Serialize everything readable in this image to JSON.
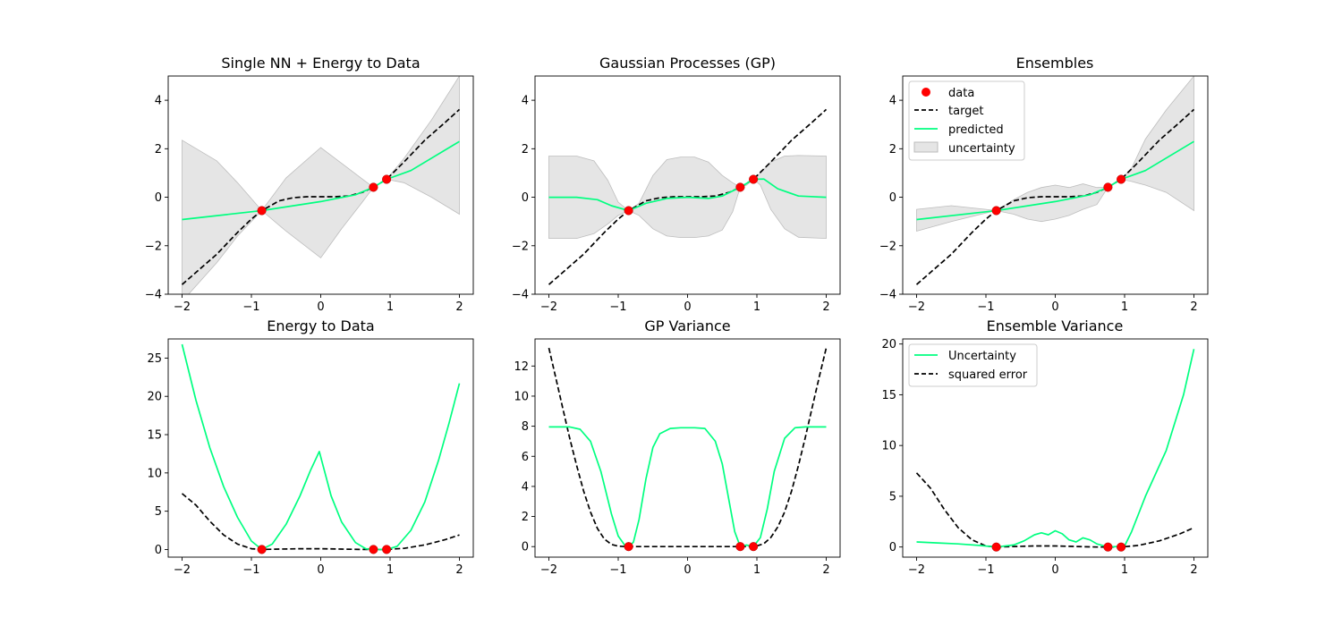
{
  "colors": {
    "data": "#ff0000",
    "target": "#000000",
    "predicted": "#00ff80",
    "band": "#d3d3d3"
  },
  "chart_data": [
    {
      "type": "line",
      "title": "Single NN + Energy to Data",
      "xlim": [
        -2.2,
        2.2
      ],
      "ylim": [
        -4,
        5
      ],
      "xticks": [
        -2,
        -1,
        0,
        1,
        2
      ],
      "yticks": [
        -4,
        -2,
        0,
        2,
        4
      ],
      "data_points": {
        "x": [
          -0.85,
          0.76,
          0.95
        ],
        "y": [
          -0.55,
          0.41,
          0.74
        ]
      },
      "target": {
        "x": [
          -2.0,
          -1.5,
          -1.2,
          -1.0,
          -0.85,
          -0.6,
          -0.4,
          -0.2,
          0.0,
          0.2,
          0.4,
          0.6,
          0.76,
          0.95,
          1.2,
          1.5,
          1.8,
          2.0
        ],
        "y": [
          -3.6,
          -2.35,
          -1.45,
          -0.9,
          -0.55,
          -0.15,
          -0.02,
          0.02,
          0.02,
          0.02,
          0.05,
          0.2,
          0.41,
          0.74,
          1.45,
          2.35,
          3.1,
          3.62
        ]
      },
      "predicted": {
        "x": [
          -2.0,
          -1.0,
          -0.85,
          0.0,
          0.5,
          0.76,
          0.95,
          1.3,
          2.0
        ],
        "y": [
          -0.92,
          -0.6,
          -0.55,
          -0.18,
          0.1,
          0.41,
          0.74,
          1.1,
          2.3
        ]
      },
      "band": {
        "x": [
          -2.0,
          -1.5,
          -1.2,
          -0.85,
          -0.5,
          0.0,
          0.3,
          0.6,
          0.76,
          0.95,
          1.2,
          1.6,
          2.0
        ],
        "lower": [
          -4.3,
          -2.7,
          -1.6,
          -0.55,
          -1.4,
          -2.5,
          -1.3,
          -0.2,
          0.41,
          0.74,
          0.6,
          0.0,
          -0.7
        ],
        "upper": [
          2.35,
          1.5,
          0.6,
          -0.55,
          0.8,
          2.05,
          1.4,
          0.75,
          0.41,
          0.74,
          1.6,
          3.2,
          5.0
        ]
      }
    },
    {
      "type": "line",
      "title": "Gaussian Processes (GP)",
      "xlim": [
        -2.2,
        2.2
      ],
      "ylim": [
        -4,
        5
      ],
      "xticks": [
        -2,
        -1,
        0,
        1,
        2
      ],
      "yticks": [
        -4,
        -2,
        0,
        2,
        4
      ],
      "data_points": {
        "x": [
          -0.85,
          0.76,
          0.95
        ],
        "y": [
          -0.55,
          0.41,
          0.74
        ]
      },
      "target": {
        "x": [
          -2.0,
          -1.5,
          -1.2,
          -1.0,
          -0.85,
          -0.6,
          -0.4,
          -0.2,
          0.0,
          0.2,
          0.4,
          0.6,
          0.76,
          0.95,
          1.2,
          1.5,
          1.8,
          2.0
        ],
        "y": [
          -3.6,
          -2.35,
          -1.45,
          -0.9,
          -0.55,
          -0.15,
          -0.02,
          0.02,
          0.02,
          0.02,
          0.05,
          0.2,
          0.41,
          0.74,
          1.45,
          2.35,
          3.1,
          3.62
        ]
      },
      "predicted": {
        "x": [
          -2.0,
          -1.6,
          -1.3,
          -1.1,
          -0.85,
          -0.6,
          -0.3,
          0.0,
          0.3,
          0.5,
          0.76,
          0.95,
          1.1,
          1.3,
          1.6,
          2.0
        ],
        "y": [
          0.0,
          0.0,
          -0.1,
          -0.35,
          -0.55,
          -0.25,
          -0.05,
          0.0,
          -0.05,
          0.05,
          0.41,
          0.74,
          0.75,
          0.35,
          0.05,
          0.0
        ]
      },
      "band": {
        "x": [
          -2.0,
          -1.6,
          -1.35,
          -1.15,
          -1.0,
          -0.85,
          -0.7,
          -0.5,
          -0.3,
          -0.1,
          0.1,
          0.3,
          0.5,
          0.65,
          0.76,
          0.85,
          0.95,
          1.05,
          1.2,
          1.4,
          1.6,
          2.0
        ],
        "lower": [
          -1.7,
          -1.7,
          -1.5,
          -1.1,
          -0.75,
          -0.55,
          -0.75,
          -1.3,
          -1.6,
          -1.66,
          -1.66,
          -1.6,
          -1.35,
          -0.6,
          0.41,
          0.5,
          0.74,
          0.5,
          -0.5,
          -1.3,
          -1.65,
          -1.7
        ],
        "upper": [
          1.7,
          1.7,
          1.5,
          0.7,
          -0.2,
          -0.55,
          -0.25,
          0.9,
          1.55,
          1.66,
          1.66,
          1.45,
          0.9,
          0.6,
          0.41,
          0.55,
          0.74,
          1.0,
          1.45,
          1.7,
          1.72,
          1.7
        ]
      }
    },
    {
      "type": "line",
      "title": "Ensembles",
      "xlim": [
        -2.2,
        2.2
      ],
      "ylim": [
        -4,
        5
      ],
      "xticks": [
        -2,
        -1,
        0,
        1,
        2
      ],
      "yticks": [
        -4,
        -2,
        0,
        2,
        4
      ],
      "legend": [
        "data",
        "target",
        "predicted",
        "uncertainty"
      ],
      "data_points": {
        "x": [
          -0.85,
          0.76,
          0.95
        ],
        "y": [
          -0.55,
          0.41,
          0.74
        ]
      },
      "target": {
        "x": [
          -2.0,
          -1.5,
          -1.2,
          -1.0,
          -0.85,
          -0.6,
          -0.4,
          -0.2,
          0.0,
          0.2,
          0.4,
          0.6,
          0.76,
          0.95,
          1.2,
          1.5,
          1.8,
          2.0
        ],
        "y": [
          -3.6,
          -2.35,
          -1.45,
          -0.9,
          -0.55,
          -0.15,
          -0.02,
          0.02,
          0.02,
          0.02,
          0.05,
          0.2,
          0.41,
          0.74,
          1.45,
          2.35,
          3.1,
          3.62
        ]
      },
      "predicted": {
        "x": [
          -2.0,
          -1.0,
          -0.85,
          0.0,
          0.5,
          0.76,
          0.95,
          1.3,
          2.0
        ],
        "y": [
          -0.92,
          -0.6,
          -0.55,
          -0.18,
          0.1,
          0.41,
          0.74,
          1.1,
          2.3
        ]
      },
      "band": {
        "x": [
          -2.0,
          -1.5,
          -1.0,
          -0.85,
          -0.6,
          -0.4,
          -0.2,
          0.0,
          0.2,
          0.4,
          0.6,
          0.76,
          0.85,
          0.95,
          1.1,
          1.3,
          1.6,
          2.0
        ],
        "lower": [
          -1.4,
          -1.0,
          -0.65,
          -0.55,
          -0.7,
          -0.9,
          -1.0,
          -0.9,
          -0.75,
          -0.5,
          -0.3,
          0.41,
          0.55,
          0.74,
          0.65,
          0.5,
          0.2,
          -0.55
        ],
        "upper": [
          -0.5,
          -0.35,
          -0.5,
          -0.55,
          -0.1,
          0.2,
          0.4,
          0.5,
          0.4,
          0.55,
          0.4,
          0.41,
          0.6,
          0.74,
          1.2,
          2.4,
          3.6,
          5.0
        ]
      }
    },
    {
      "type": "line",
      "title": "Energy to Data",
      "xlim": [
        -2.2,
        2.2
      ],
      "ylim": [
        -1,
        27.5
      ],
      "xticks": [
        -2,
        -1,
        0,
        1,
        2
      ],
      "yticks": [
        0,
        5,
        10,
        15,
        20,
        25
      ],
      "data_points": {
        "x": [
          -0.85,
          0.76,
          0.95
        ],
        "y": [
          0,
          0,
          0
        ]
      },
      "uncertainty": {
        "x": [
          -2.0,
          -1.8,
          -1.6,
          -1.4,
          -1.2,
          -1.0,
          -0.85,
          -0.7,
          -0.5,
          -0.3,
          -0.15,
          -0.02,
          0.15,
          0.3,
          0.5,
          0.65,
          0.76,
          0.85,
          0.95,
          1.1,
          1.3,
          1.5,
          1.7,
          1.85,
          2.0
        ],
        "y": [
          26.8,
          19.5,
          13.3,
          8.2,
          4.2,
          1.1,
          0.0,
          0.7,
          3.3,
          7.0,
          10.3,
          12.8,
          7.0,
          3.6,
          0.9,
          0.1,
          0.0,
          0.0,
          0.0,
          0.4,
          2.5,
          6.2,
          11.7,
          16.5,
          21.7
        ]
      },
      "squared_error": {
        "x": [
          -2.0,
          -1.8,
          -1.6,
          -1.4,
          -1.2,
          -1.0,
          -0.85,
          -0.6,
          -0.3,
          0.0,
          0.3,
          0.6,
          0.76,
          0.95,
          1.2,
          1.5,
          1.8,
          2.0
        ],
        "y": [
          7.3,
          5.8,
          3.7,
          1.9,
          0.7,
          0.1,
          0.0,
          0.05,
          0.1,
          0.1,
          0.05,
          0.0,
          0.0,
          0.0,
          0.15,
          0.6,
          1.3,
          1.9
        ]
      }
    },
    {
      "type": "line",
      "title": "GP Variance",
      "xlim": [
        -2.2,
        2.2
      ],
      "ylim": [
        -0.7,
        13.8
      ],
      "xticks": [
        -2,
        -1,
        0,
        1,
        2
      ],
      "yticks": [
        0,
        2,
        4,
        6,
        8,
        10,
        12
      ],
      "data_points": {
        "x": [
          -0.85,
          0.76,
          0.95
        ],
        "y": [
          0,
          0,
          0
        ]
      },
      "uncertainty": {
        "x": [
          -2.0,
          -1.7,
          -1.55,
          -1.4,
          -1.25,
          -1.1,
          -1.0,
          -0.9,
          -0.85,
          -0.78,
          -0.7,
          -0.6,
          -0.5,
          -0.4,
          -0.25,
          -0.1,
          0.1,
          0.25,
          0.4,
          0.5,
          0.6,
          0.68,
          0.76,
          0.85,
          0.95,
          1.05,
          1.15,
          1.25,
          1.4,
          1.55,
          1.7,
          2.0
        ],
        "y": [
          7.95,
          7.95,
          7.8,
          7.0,
          5.0,
          2.2,
          0.7,
          0.05,
          0.0,
          0.3,
          1.8,
          4.5,
          6.6,
          7.5,
          7.85,
          7.9,
          7.9,
          7.85,
          7.0,
          5.5,
          3.0,
          1.0,
          0.0,
          0.1,
          0.0,
          0.6,
          2.5,
          5.0,
          7.2,
          7.9,
          7.95,
          7.95
        ]
      },
      "squared_error": {
        "x": [
          -2.0,
          -1.9,
          -1.8,
          -1.7,
          -1.6,
          -1.5,
          -1.4,
          -1.3,
          -1.2,
          -1.1,
          -1.0,
          -0.9,
          -0.85,
          -0.5,
          0.0,
          0.5,
          0.76,
          0.95,
          1.0,
          1.1,
          1.2,
          1.3,
          1.4,
          1.5,
          1.6,
          1.7,
          1.8,
          1.9,
          2.0
        ],
        "y": [
          13.2,
          11.2,
          9.2,
          7.2,
          5.4,
          3.7,
          2.3,
          1.2,
          0.5,
          0.15,
          0.03,
          0.0,
          0.0,
          0.0,
          0.0,
          0.0,
          0.0,
          0.0,
          0.05,
          0.2,
          0.6,
          1.3,
          2.3,
          3.7,
          5.4,
          7.3,
          9.3,
          11.3,
          13.2
        ]
      }
    },
    {
      "type": "line",
      "title": "Ensemble Variance",
      "xlim": [
        -2.2,
        2.2
      ],
      "ylim": [
        -1,
        20.5
      ],
      "xticks": [
        -2,
        -1,
        0,
        1,
        2
      ],
      "yticks": [
        0,
        5,
        10,
        15,
        20
      ],
      "legend": [
        "Uncertainty",
        "squared error"
      ],
      "data_points": {
        "x": [
          -0.85,
          0.76,
          0.95
        ],
        "y": [
          0,
          0,
          0
        ]
      },
      "uncertainty": {
        "x": [
          -2.0,
          -1.7,
          -1.4,
          -1.1,
          -0.85,
          -0.6,
          -0.45,
          -0.3,
          -0.2,
          -0.1,
          0.0,
          0.1,
          0.2,
          0.3,
          0.4,
          0.5,
          0.6,
          0.76,
          0.9,
          1.0,
          1.1,
          1.3,
          1.6,
          1.85,
          2.0
        ],
        "y": [
          0.5,
          0.4,
          0.3,
          0.15,
          0.0,
          0.2,
          0.6,
          1.2,
          1.4,
          1.2,
          1.6,
          1.3,
          0.7,
          0.5,
          0.9,
          0.7,
          0.3,
          0.0,
          0.05,
          0.1,
          1.5,
          5.0,
          9.5,
          15.0,
          19.5
        ]
      },
      "squared_error": {
        "x": [
          -2.0,
          -1.8,
          -1.6,
          -1.4,
          -1.2,
          -1.0,
          -0.85,
          -0.6,
          -0.3,
          0.0,
          0.3,
          0.6,
          0.76,
          0.95,
          1.2,
          1.5,
          1.8,
          2.0
        ],
        "y": [
          7.3,
          5.8,
          3.7,
          1.9,
          0.7,
          0.1,
          0.0,
          0.05,
          0.1,
          0.1,
          0.05,
          0.0,
          0.0,
          0.0,
          0.15,
          0.6,
          1.3,
          1.9
        ]
      }
    }
  ]
}
